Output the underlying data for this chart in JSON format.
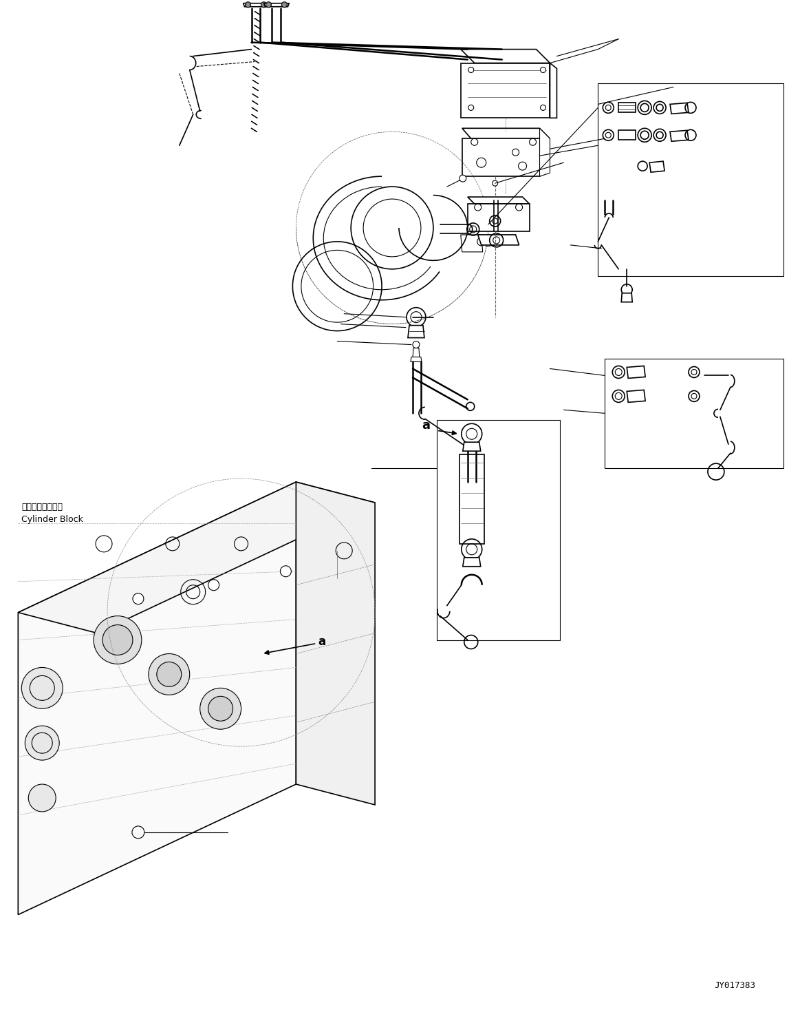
{
  "background_color": "#ffffff",
  "line_color": "#000000",
  "fig_width": 11.63,
  "fig_height": 14.67,
  "dpi": 100,
  "watermark_text": "JY017383",
  "watermark_fontsize": 9,
  "label_cylinder_block_jp": "シリンダブロック",
  "label_cylinder_block_en": "Cylinder Block",
  "label_a": "a"
}
